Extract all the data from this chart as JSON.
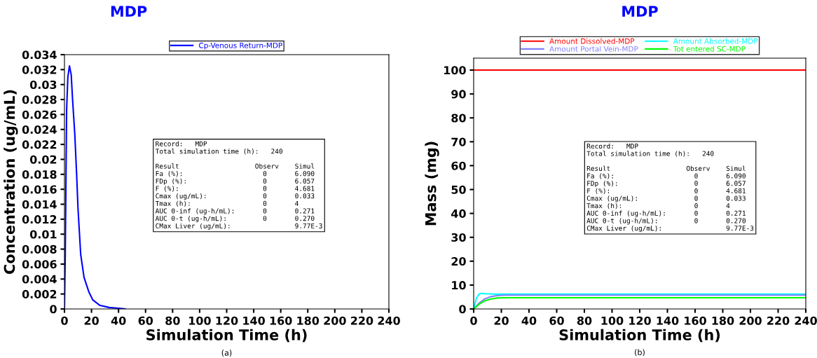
{
  "chart_data": [
    {
      "type": "line",
      "title": "MDP",
      "xlabel": "Simulation Time (h)",
      "ylabel": "Concentration (ug/mL)",
      "xlim": [
        0,
        240
      ],
      "xticks": [
        0,
        20,
        40,
        60,
        80,
        100,
        120,
        140,
        160,
        180,
        200,
        220,
        240
      ],
      "ylim": [
        0,
        0.034
      ],
      "yticks": [
        0,
        0.002,
        0.004,
        0.006,
        0.008,
        0.01,
        0.012,
        0.014,
        0.016,
        0.018,
        0.02,
        0.022,
        0.024,
        0.026,
        0.028,
        0.03,
        0.032,
        0.034
      ],
      "grid": false,
      "legend": "top",
      "marker": "none",
      "line_style": "solid",
      "series": [
        {
          "name": "Cp-Venous Return-MDP",
          "color": "#0000ff",
          "x": [
            0,
            0.6,
            1.6,
            2.5,
            3.7,
            5,
            6,
            7.6,
            9,
            10,
            12,
            14.5,
            18,
            21,
            26,
            33,
            40,
            45
          ],
          "values": [
            0,
            0.0073,
            0.0266,
            0.031,
            0.0325,
            0.0313,
            0.028,
            0.0235,
            0.018,
            0.0135,
            0.0073,
            0.0042,
            0.0023,
            0.0012,
            0.0005,
            0.0002,
            0.0001,
            0
          ]
        }
      ],
      "annotations": [
        "Record:   MDP\nTotal simulation time (h):   240\n\nResult                   Observ    Simul\nFa (%):                    0       6.090\nFDp (%):                   0       6.057\nF (%):                     0       4.681\nCmax (ug/mL):              0       0.033\nTmax (h):                  0       4\nAUC 0-inf (ug-h/mL):       0       0.271\nAUC 0-t (ug-h/mL):         0       0.270\nCMax Liver (ug/mL):                9.77E-3",
        "(a)"
      ]
    },
    {
      "type": "line",
      "title": "MDP",
      "xlabel": "Simulation Time (h)",
      "ylabel": "Mass (mg)",
      "xlim": [
        0,
        240
      ],
      "xticks": [
        0,
        20,
        40,
        60,
        80,
        100,
        120,
        140,
        160,
        180,
        200,
        220,
        240
      ],
      "ylim": [
        0,
        105
      ],
      "yticks": [
        0,
        10,
        20,
        30,
        40,
        50,
        60,
        70,
        80,
        90,
        100
      ],
      "grid": false,
      "legend": "top",
      "marker": "none",
      "line_style": "solid",
      "series": [
        {
          "name": "Amount Dissolved-MDP",
          "color": "#ff0000",
          "x": [
            0,
            240
          ],
          "values": [
            100,
            100
          ]
        },
        {
          "name": "Amount Absorbed-MDP",
          "color": "#00ffff",
          "x": [
            0,
            2,
            4,
            6,
            8,
            12,
            16,
            24,
            240
          ],
          "values": [
            0,
            4.5,
            6.3,
            6.5,
            6.4,
            6.3,
            6.2,
            6.2,
            6.2
          ]
        },
        {
          "name": "Amount Portal Vein-MDP",
          "color": "#8080ff",
          "x": [
            0,
            4,
            8,
            12,
            16,
            20,
            24,
            240
          ],
          "values": [
            0,
            2.5,
            4.2,
            5.1,
            5.5,
            5.7,
            5.8,
            5.8
          ]
        },
        {
          "name": "Tot entered SC-MDP",
          "color": "#00ff00",
          "x": [
            0,
            4,
            8,
            12,
            16,
            20,
            24,
            240
          ],
          "values": [
            0,
            2.0,
            3.4,
            4.1,
            4.5,
            4.7,
            4.7,
            4.7
          ]
        }
      ],
      "annotations": [
        "Record:   MDP\nTotal simulation time (h):   240\n\nResult                   Observ    Simul\nFa (%):                    0       6.090\nFDp (%):                   0       6.057\nF (%):                     0       4.681\nCmax (ug/mL):              0       0.033\nTmax (h):                  0       4\nAUC 0-inf (ug-h/mL):       0       0.271\nAUC 0-t (ug-h/mL):         0       0.270\nCMax Liver (ug/mL):                9.77E-3",
        "(b)"
      ]
    }
  ]
}
